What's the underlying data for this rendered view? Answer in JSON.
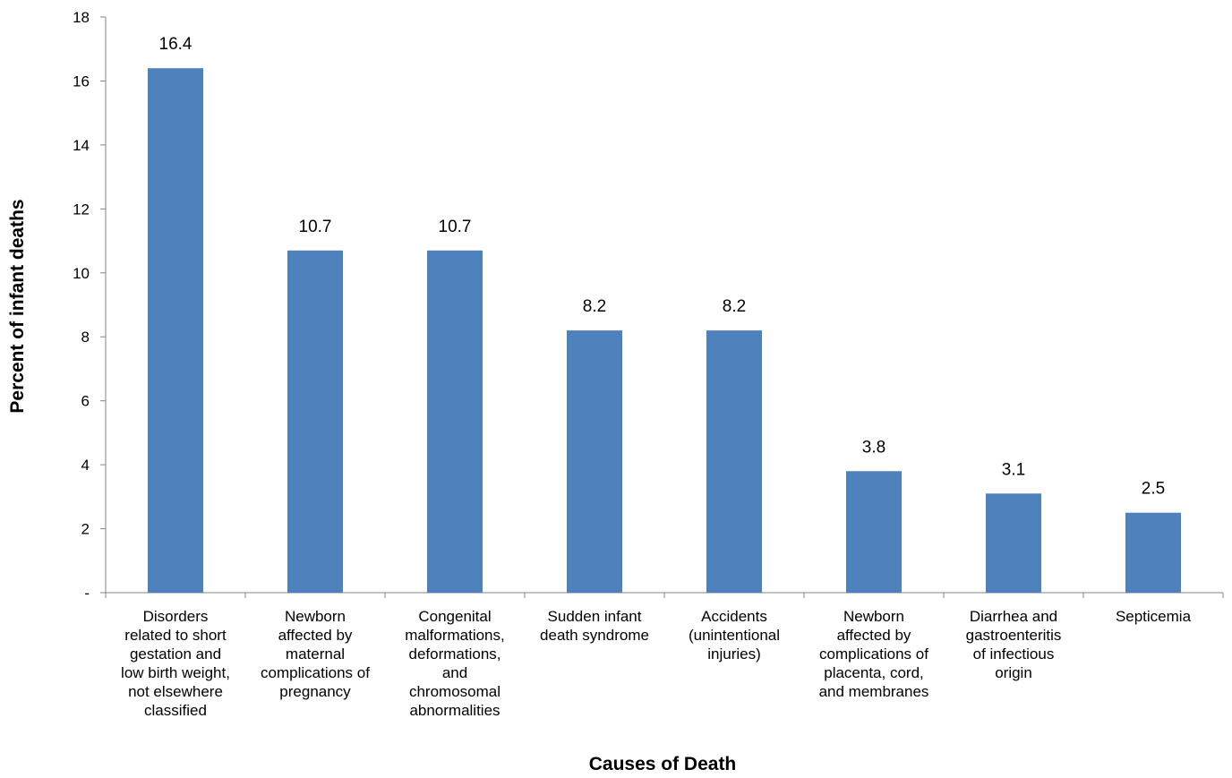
{
  "chart_data": {
    "type": "bar",
    "title": "",
    "xlabel": "Causes of Death",
    "ylabel": "Percent of infant deaths",
    "ylim": [
      0,
      18
    ],
    "yticks": [
      0,
      2,
      4,
      6,
      8,
      10,
      12,
      14,
      16,
      18
    ],
    "ytick_labels": [
      "-",
      "2",
      "4",
      "6",
      "8",
      "10",
      "12",
      "14",
      "16",
      "18"
    ],
    "categories": [
      [
        "Disorders",
        "related to short",
        "gestation and",
        "low birth weight,",
        "not elsewhere",
        "classified"
      ],
      [
        "Newborn",
        "affected by",
        "maternal",
        "complications of",
        "pregnancy"
      ],
      [
        "Congenital",
        "malformations,",
        "deformations,",
        "and",
        "chromosomal",
        "abnormalities"
      ],
      [
        "Sudden infant",
        "death syndrome"
      ],
      [
        "Accidents",
        "(unintentional",
        "injuries)"
      ],
      [
        "Newborn",
        "affected by",
        "complications of",
        "placenta, cord,",
        "and membranes"
      ],
      [
        "Diarrhea and",
        "gastroenteritis",
        "of infectious",
        "origin"
      ],
      [
        "Septicemia"
      ]
    ],
    "values": [
      16.4,
      10.7,
      10.7,
      8.2,
      8.2,
      3.8,
      3.1,
      2.5
    ],
    "data_labels": [
      "16.4",
      "10.7",
      "10.7",
      "8.2",
      "8.2",
      "3.8",
      "3.1",
      "2.5"
    ],
    "grid": false,
    "legend": "none",
    "colors": {
      "bar": "#4F81BD",
      "axis": "#868686",
      "text": "#000000"
    }
  }
}
